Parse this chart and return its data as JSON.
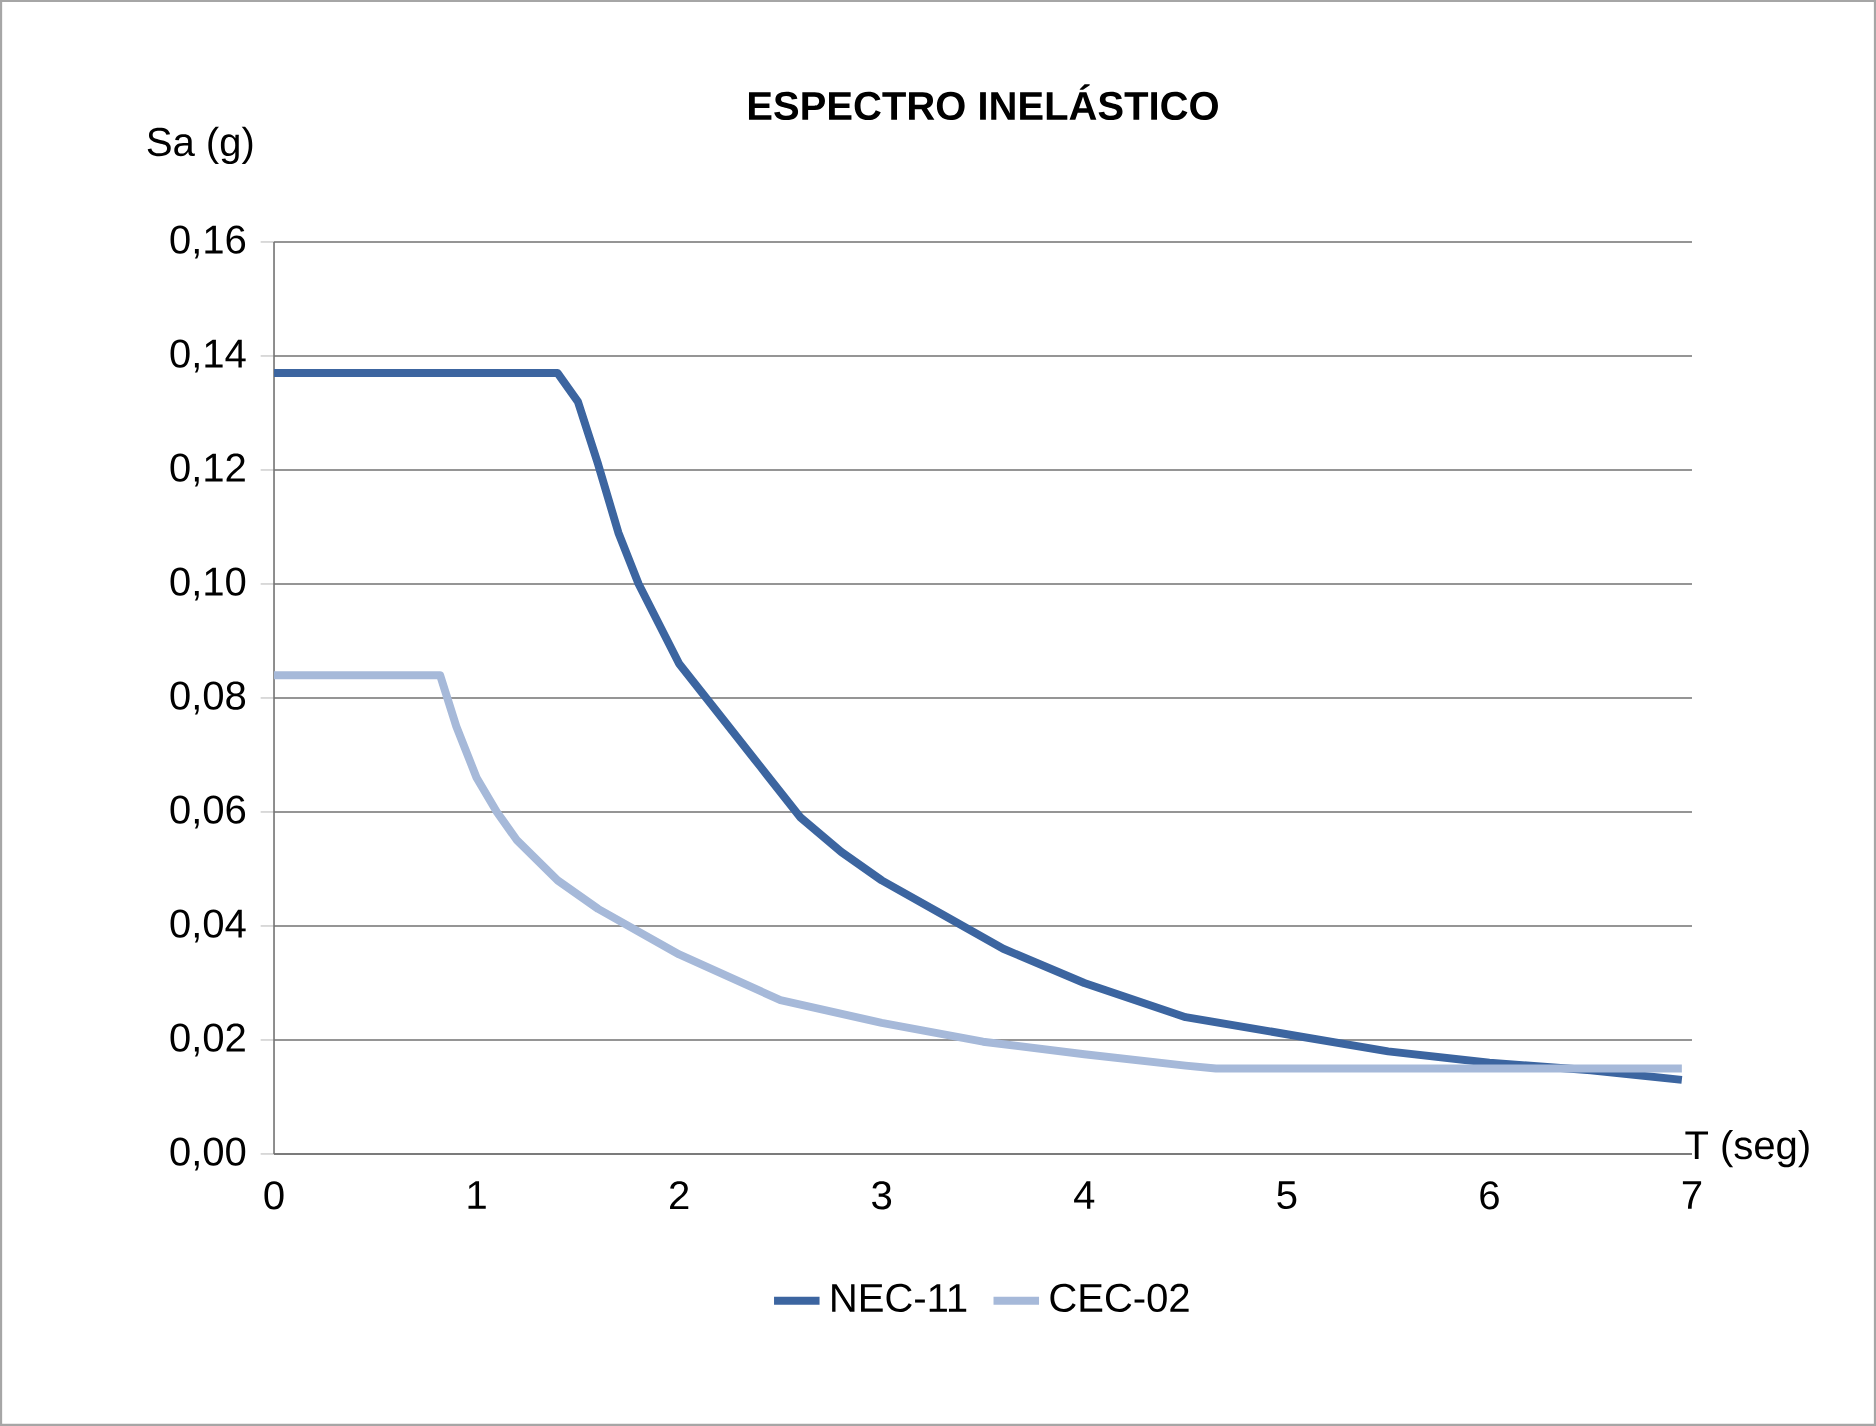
{
  "chart_data": {
    "type": "line",
    "title": "ESPECTRO INELÁSTICO",
    "xlabel": "T (seg)",
    "ylabel": "Sa (g)",
    "xlim": [
      0,
      7
    ],
    "xticks": [
      0,
      1,
      2,
      3,
      4,
      5,
      6,
      7
    ],
    "ylim": [
      0,
      0.16
    ],
    "yticks": [
      {
        "value": 0,
        "label": "0,00"
      },
      {
        "value": 0.02,
        "label": "0,02"
      },
      {
        "value": 0.04,
        "label": "0,04"
      },
      {
        "value": 0.06,
        "label": "0,06"
      },
      {
        "value": 0.08,
        "label": "0,08"
      },
      {
        "value": 0.1,
        "label": "0,10"
      },
      {
        "value": 0.12,
        "label": "0,12"
      },
      {
        "value": 0.14,
        "label": "0,14"
      },
      {
        "value": 0.16,
        "label": "0,16"
      }
    ],
    "grid": "y",
    "legend": "bottom",
    "marker": "none",
    "line_style": "solid",
    "series": [
      {
        "name": "NEC-11",
        "color": "#3c65a0",
        "x": [
          0,
          1.4,
          1.5,
          1.6,
          1.7,
          1.8,
          2.0,
          2.2,
          2.4,
          2.6,
          2.8,
          3.0,
          3.3,
          3.6,
          4.0,
          4.5,
          5.0,
          5.5,
          6.0,
          6.5,
          6.95
        ],
        "values": [
          0.137,
          0.137,
          0.132,
          0.121,
          0.109,
          0.1,
          0.086,
          0.077,
          0.068,
          0.059,
          0.053,
          0.048,
          0.042,
          0.036,
          0.03,
          0.024,
          0.021,
          0.018,
          0.016,
          0.0147,
          0.013
        ]
      },
      {
        "name": "CEC-02",
        "color": "#a6b9d9",
        "x": [
          0,
          0.82,
          0.9,
          1.0,
          1.1,
          1.2,
          1.4,
          1.6,
          1.8,
          2.0,
          2.5,
          3.0,
          3.5,
          4.0,
          4.5,
          4.65,
          6.95
        ],
        "values": [
          0.084,
          0.084,
          0.075,
          0.066,
          0.06,
          0.055,
          0.048,
          0.043,
          0.039,
          0.035,
          0.027,
          0.023,
          0.0197,
          0.0175,
          0.0155,
          0.015,
          0.015
        ]
      }
    ]
  }
}
